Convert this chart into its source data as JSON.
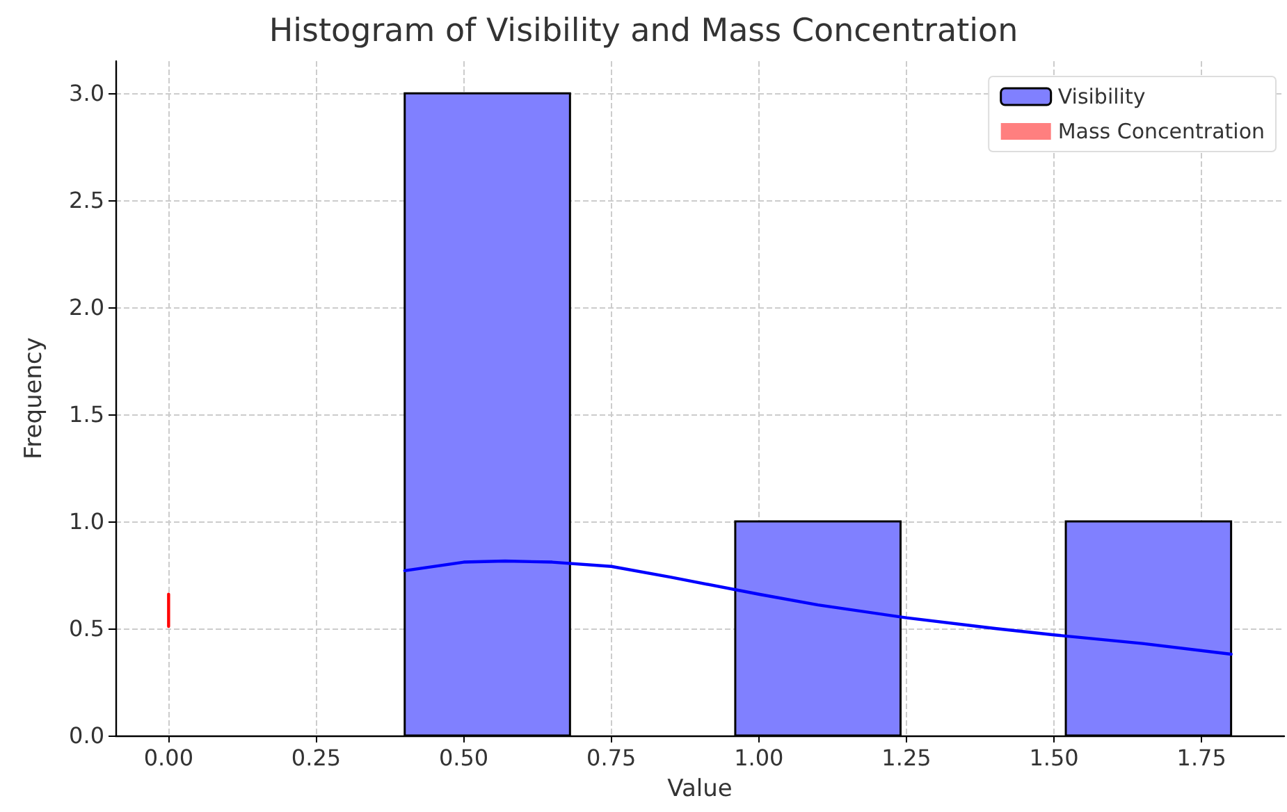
{
  "chart_data": {
    "type": "histogram",
    "title": "Histogram of Visibility and Mass Concentration",
    "xlabel": "Value",
    "ylabel": "Frequency",
    "series": [
      {
        "name": "Visibility",
        "color": "#8080ff",
        "bins": [
          0.4,
          0.68,
          0.96,
          1.24,
          1.52,
          1.8
        ],
        "values": [
          3,
          0,
          1,
          0,
          1
        ]
      },
      {
        "type": "line",
        "color": "#0000ff",
        "x": [
          0.4,
          0.5,
          0.57,
          0.65,
          0.75,
          0.85,
          1.0,
          1.1,
          1.25,
          1.4,
          1.5,
          1.65,
          1.8
        ],
        "values": [
          0.77,
          0.81,
          0.815,
          0.81,
          0.79,
          0.74,
          0.66,
          0.61,
          0.55,
          0.5,
          0.47,
          0.43,
          0.38
        ]
      },
      {
        "name": "Mass Concentration",
        "type": "line",
        "color": "#ff0000",
        "x": [
          0,
          0
        ],
        "values": [
          0.51,
          0.66
        ]
      }
    ],
    "xlim": [
      -0.09,
      1.89
    ],
    "xticks": [
      {
        "value": 0,
        "label": "0.00"
      },
      {
        "value": 0.25,
        "label": "0.25"
      },
      {
        "value": 0.5,
        "label": "0.50"
      },
      {
        "value": 0.75,
        "label": "0.75"
      },
      {
        "value": 1,
        "label": "1.00"
      },
      {
        "value": 1.25,
        "label": "1.25"
      },
      {
        "value": 1.5,
        "label": "1.50"
      },
      {
        "value": 1.75,
        "label": "1.75"
      }
    ],
    "ylim": [
      0,
      3.15
    ],
    "yticks": [
      {
        "value": 0,
        "label": "0.0"
      },
      {
        "value": 0.5,
        "label": "0.5"
      },
      {
        "value": 1,
        "label": "1.0"
      },
      {
        "value": 1.5,
        "label": "1.5"
      },
      {
        "value": 2,
        "label": "2.0"
      },
      {
        "value": 2.5,
        "label": "2.5"
      },
      {
        "value": 3,
        "label": "3.0"
      }
    ],
    "grid": true,
    "legend": "top right"
  }
}
